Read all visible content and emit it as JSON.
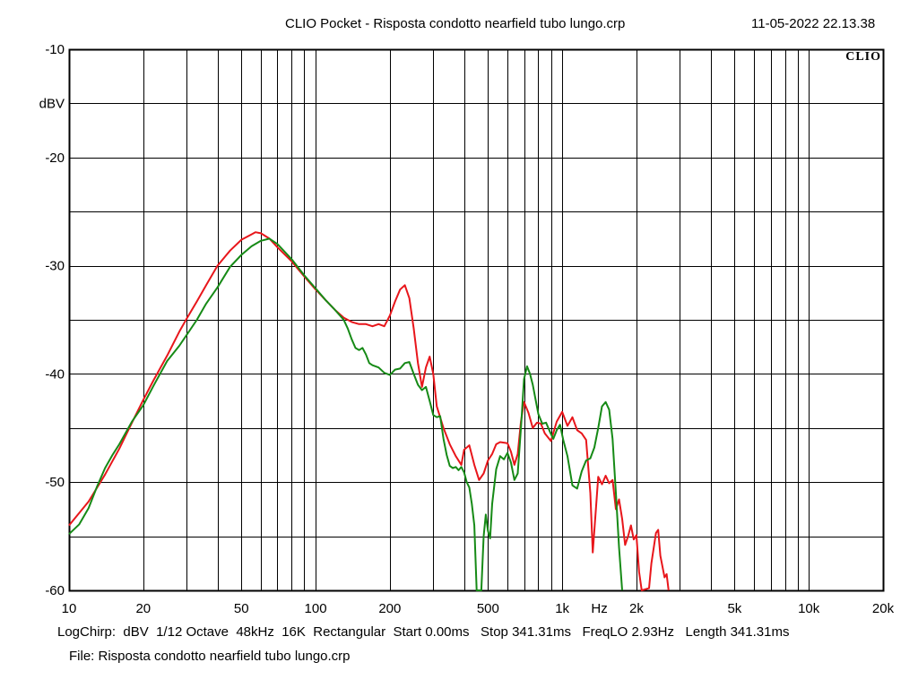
{
  "header": {
    "title": "CLIO Pocket - Risposta condotto nearfield tubo lungo.crp",
    "timestamp": "11-05-2022 22.13.38"
  },
  "logo": {
    "text": "CLIO"
  },
  "footer": {
    "settings": [
      "LogChirp:",
      "dBV",
      "1/12 Octave",
      "48kHz",
      "16K",
      "Rectangular",
      "Start 0.00ms",
      "Stop 341.31ms",
      "FreqLO 2.93Hz",
      "Length 341.31ms"
    ],
    "file_label": "File: Risposta condotto nearfield tubo lungo.crp"
  },
  "colors": {
    "red_trace": "#e8161b",
    "green_trace": "#168a16",
    "grid": "#000000",
    "background": "#ffffff"
  },
  "chart_data": {
    "type": "line",
    "x_scale": "log",
    "xlim": [
      10,
      20000
    ],
    "ylim": [
      -60,
      -10
    ],
    "ylabel": "dBV",
    "xlabel": "Hz",
    "grid": true,
    "x_ticks": [
      {
        "value": 10,
        "label": "10"
      },
      {
        "value": 20,
        "label": "20"
      },
      {
        "value": 50,
        "label": "50"
      },
      {
        "value": 100,
        "label": "100"
      },
      {
        "value": 200,
        "label": "200"
      },
      {
        "value": 500,
        "label": "500"
      },
      {
        "value": 1000,
        "label": "1k"
      },
      {
        "value": 2000,
        "label": "2k"
      },
      {
        "value": 5000,
        "label": "5k"
      },
      {
        "value": 10000,
        "label": "10k"
      },
      {
        "value": 20000,
        "label": "20k"
      }
    ],
    "y_ticks": [
      {
        "value": -10,
        "label": "-10"
      },
      {
        "value": -20,
        "label": "-20"
      },
      {
        "value": -30,
        "label": "-30"
      },
      {
        "value": -40,
        "label": "-40"
      },
      {
        "value": -50,
        "label": "-50"
      },
      {
        "value": -60,
        "label": "-60"
      }
    ],
    "series": [
      {
        "color": "#e8161b",
        "points": [
          [
            10,
            -54.0
          ],
          [
            12,
            -51.8
          ],
          [
            14,
            -49.3
          ],
          [
            16,
            -46.9
          ],
          [
            18,
            -44.5
          ],
          [
            20,
            -42.4
          ],
          [
            22,
            -40.6
          ],
          [
            25,
            -38.3
          ],
          [
            28,
            -36.1
          ],
          [
            30,
            -34.9
          ],
          [
            33,
            -33.3
          ],
          [
            36,
            -31.8
          ],
          [
            40,
            -30.0
          ],
          [
            45,
            -28.6
          ],
          [
            50,
            -27.6
          ],
          [
            55,
            -27.1
          ],
          [
            57,
            -26.9
          ],
          [
            60,
            -27.0
          ],
          [
            65,
            -27.5
          ],
          [
            70,
            -28.3
          ],
          [
            80,
            -29.6
          ],
          [
            90,
            -31.0
          ],
          [
            100,
            -32.2
          ],
          [
            110,
            -33.2
          ],
          [
            120,
            -34.1
          ],
          [
            130,
            -34.8
          ],
          [
            140,
            -35.2
          ],
          [
            150,
            -35.4
          ],
          [
            160,
            -35.4
          ],
          [
            170,
            -35.6
          ],
          [
            180,
            -35.4
          ],
          [
            190,
            -35.6
          ],
          [
            200,
            -34.6
          ],
          [
            210,
            -33.3
          ],
          [
            220,
            -32.2
          ],
          [
            230,
            -31.8
          ],
          [
            240,
            -33.0
          ],
          [
            250,
            -35.8
          ],
          [
            260,
            -39.0
          ],
          [
            270,
            -41.2
          ],
          [
            280,
            -39.4
          ],
          [
            290,
            -38.4
          ],
          [
            300,
            -40.0
          ],
          [
            310,
            -43.0
          ],
          [
            330,
            -45.0
          ],
          [
            350,
            -46.5
          ],
          [
            370,
            -47.6
          ],
          [
            390,
            -48.4
          ],
          [
            400,
            -47.0
          ],
          [
            420,
            -46.6
          ],
          [
            440,
            -48.4
          ],
          [
            460,
            -49.8
          ],
          [
            480,
            -49.2
          ],
          [
            500,
            -48.0
          ],
          [
            520,
            -47.4
          ],
          [
            540,
            -46.5
          ],
          [
            560,
            -46.3
          ],
          [
            600,
            -46.4
          ],
          [
            620,
            -47.2
          ],
          [
            640,
            -48.4
          ],
          [
            660,
            -47.4
          ],
          [
            680,
            -44.4
          ],
          [
            700,
            -42.6
          ],
          [
            730,
            -43.6
          ],
          [
            760,
            -45.0
          ],
          [
            790,
            -44.5
          ],
          [
            820,
            -44.6
          ],
          [
            850,
            -45.5
          ],
          [
            900,
            -46.2
          ],
          [
            950,
            -44.4
          ],
          [
            1000,
            -43.5
          ],
          [
            1050,
            -44.8
          ],
          [
            1100,
            -44.0
          ],
          [
            1150,
            -45.2
          ],
          [
            1200,
            -45.5
          ],
          [
            1250,
            -46.1
          ],
          [
            1300,
            -51.0
          ],
          [
            1330,
            -56.5
          ],
          [
            1370,
            -52.5
          ],
          [
            1400,
            -49.5
          ],
          [
            1450,
            -50.2
          ],
          [
            1500,
            -49.4
          ],
          [
            1550,
            -50.1
          ],
          [
            1600,
            -49.8
          ],
          [
            1650,
            -52.5
          ],
          [
            1700,
            -51.6
          ],
          [
            1750,
            -53.4
          ],
          [
            1800,
            -55.8
          ],
          [
            1850,
            -55.0
          ],
          [
            1900,
            -54.0
          ],
          [
            1950,
            -55.3
          ],
          [
            2000,
            -54.9
          ],
          [
            2050,
            -58.3
          ],
          [
            2100,
            -60.0
          ],
          [
            2250,
            -59.8
          ],
          [
            2300,
            -57.5
          ],
          [
            2400,
            -54.7
          ],
          [
            2450,
            -54.4
          ],
          [
            2500,
            -56.8
          ],
          [
            2600,
            -58.8
          ],
          [
            2650,
            -58.5
          ],
          [
            2700,
            -60.0
          ]
        ]
      },
      {
        "color": "#168a16",
        "points": [
          [
            10,
            -54.8
          ],
          [
            11,
            -53.9
          ],
          [
            12,
            -52.4
          ],
          [
            13,
            -50.4
          ],
          [
            14,
            -48.7
          ],
          [
            15,
            -47.5
          ],
          [
            16,
            -46.5
          ],
          [
            18,
            -44.4
          ],
          [
            20,
            -42.9
          ],
          [
            22,
            -41.1
          ],
          [
            25,
            -38.8
          ],
          [
            28,
            -37.4
          ],
          [
            30,
            -36.4
          ],
          [
            33,
            -35.0
          ],
          [
            36,
            -33.5
          ],
          [
            40,
            -32.0
          ],
          [
            45,
            -30.1
          ],
          [
            50,
            -29.0
          ],
          [
            55,
            -28.2
          ],
          [
            60,
            -27.7
          ],
          [
            65,
            -27.5
          ],
          [
            70,
            -28.0
          ],
          [
            80,
            -29.4
          ],
          [
            90,
            -30.9
          ],
          [
            100,
            -32.1
          ],
          [
            110,
            -33.2
          ],
          [
            120,
            -34.1
          ],
          [
            130,
            -35.0
          ],
          [
            135,
            -35.8
          ],
          [
            140,
            -36.8
          ],
          [
            145,
            -37.6
          ],
          [
            150,
            -37.8
          ],
          [
            155,
            -37.6
          ],
          [
            160,
            -38.2
          ],
          [
            165,
            -39.0
          ],
          [
            170,
            -39.2
          ],
          [
            180,
            -39.4
          ],
          [
            190,
            -39.9
          ],
          [
            200,
            -40.1
          ],
          [
            210,
            -39.6
          ],
          [
            220,
            -39.5
          ],
          [
            230,
            -39.0
          ],
          [
            240,
            -38.9
          ],
          [
            250,
            -40.0
          ],
          [
            260,
            -41.0
          ],
          [
            270,
            -41.5
          ],
          [
            280,
            -41.2
          ],
          [
            290,
            -42.5
          ],
          [
            300,
            -43.8
          ],
          [
            310,
            -44.0
          ],
          [
            320,
            -43.9
          ],
          [
            330,
            -46.0
          ],
          [
            340,
            -47.5
          ],
          [
            350,
            -48.5
          ],
          [
            360,
            -48.7
          ],
          [
            370,
            -48.6
          ],
          [
            380,
            -48.9
          ],
          [
            390,
            -48.6
          ],
          [
            400,
            -49.1
          ],
          [
            410,
            -50.0
          ],
          [
            420,
            -50.5
          ],
          [
            430,
            -52.0
          ],
          [
            440,
            -54.0
          ],
          [
            450,
            -60.0
          ],
          [
            470,
            -60.0
          ],
          [
            480,
            -55.0
          ],
          [
            490,
            -53.0
          ],
          [
            500,
            -54.5
          ],
          [
            510,
            -55.2
          ],
          [
            520,
            -52.0
          ],
          [
            540,
            -48.8
          ],
          [
            560,
            -47.6
          ],
          [
            580,
            -47.9
          ],
          [
            600,
            -47.3
          ],
          [
            620,
            -48.2
          ],
          [
            640,
            -49.8
          ],
          [
            660,
            -49.2
          ],
          [
            680,
            -45.0
          ],
          [
            700,
            -40.5
          ],
          [
            720,
            -39.3
          ],
          [
            740,
            -40.0
          ],
          [
            760,
            -41.0
          ],
          [
            780,
            -42.4
          ],
          [
            800,
            -43.7
          ],
          [
            830,
            -44.6
          ],
          [
            860,
            -44.5
          ],
          [
            890,
            -45.3
          ],
          [
            920,
            -46.0
          ],
          [
            950,
            -45.2
          ],
          [
            980,
            -44.7
          ],
          [
            1010,
            -46.1
          ],
          [
            1050,
            -47.6
          ],
          [
            1100,
            -50.3
          ],
          [
            1150,
            -50.6
          ],
          [
            1200,
            -49.0
          ],
          [
            1250,
            -48.0
          ],
          [
            1300,
            -47.8
          ],
          [
            1350,
            -46.8
          ],
          [
            1400,
            -45.0
          ],
          [
            1450,
            -43.0
          ],
          [
            1500,
            -42.6
          ],
          [
            1550,
            -43.3
          ],
          [
            1600,
            -46.0
          ],
          [
            1650,
            -51.0
          ],
          [
            1700,
            -56.0
          ],
          [
            1750,
            -60.0
          ]
        ]
      }
    ]
  }
}
